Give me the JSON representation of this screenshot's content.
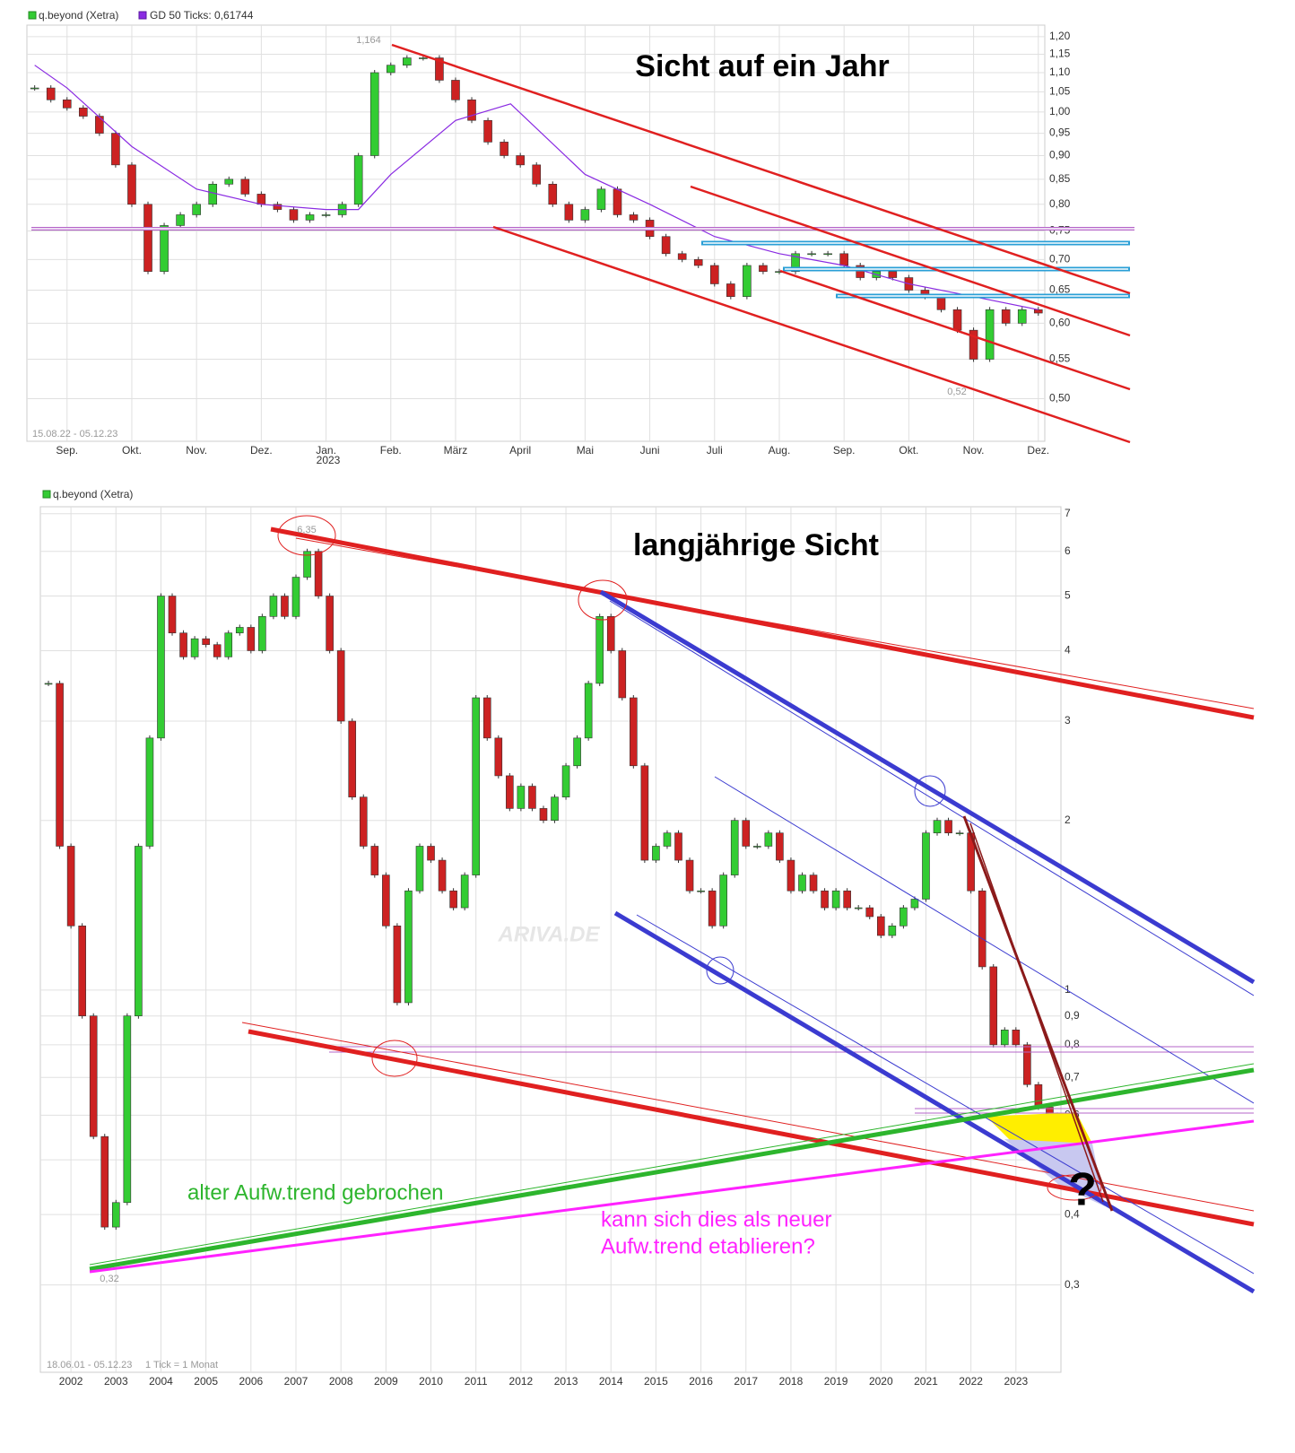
{
  "chart_data": [
    {
      "type": "candlestick",
      "title": "Sicht auf ein Jahr",
      "log_scale": true,
      "grid": true,
      "date_range": "15.08.22 - 05.12.23",
      "year_label": "2023",
      "annotations": [
        "1,164",
        "0,52"
      ],
      "xlim": [
        -0.62,
        15.1
      ],
      "ylim": [
        0.451,
        1.234
      ],
      "xticks": [
        {
          "value": 0,
          "label": "Sep."
        },
        {
          "value": 1,
          "label": "Okt."
        },
        {
          "value": 2,
          "label": "Nov."
        },
        {
          "value": 3,
          "label": "Dez."
        },
        {
          "value": 4,
          "label": "Jan."
        },
        {
          "value": 5,
          "label": "Feb."
        },
        {
          "value": 6,
          "label": "März"
        },
        {
          "value": 7,
          "label": "April"
        },
        {
          "value": 8,
          "label": "Mai"
        },
        {
          "value": 9,
          "label": "Juni"
        },
        {
          "value": 10,
          "label": "Juli"
        },
        {
          "value": 11,
          "label": "Aug."
        },
        {
          "value": 12,
          "label": "Sep."
        },
        {
          "value": 13,
          "label": "Okt."
        },
        {
          "value": 14,
          "label": "Nov."
        },
        {
          "value": 15,
          "label": "Dez."
        }
      ],
      "yticks": [
        {
          "value": 1.2,
          "label": "1,20"
        },
        {
          "value": 1.15,
          "label": "1,15"
        },
        {
          "value": 1.1,
          "label": "1,10"
        },
        {
          "value": 1.05,
          "label": "1,05"
        },
        {
          "value": 1.0,
          "label": "1,00"
        },
        {
          "value": 0.95,
          "label": "0,95"
        },
        {
          "value": 0.9,
          "label": "0,90"
        },
        {
          "value": 0.85,
          "label": "0,85"
        },
        {
          "value": 0.8,
          "label": "0,80"
        },
        {
          "value": 0.75,
          "label": "0,75"
        },
        {
          "value": 0.7,
          "label": "0,70"
        },
        {
          "value": 0.65,
          "label": "0,65"
        },
        {
          "value": 0.6,
          "label": "0,60"
        },
        {
          "value": 0.55,
          "label": "0,55"
        },
        {
          "value": 0.5,
          "label": "0,50"
        }
      ],
      "series": [
        {
          "name": "q.beyond (Xetra)",
          "type": "candlestick",
          "color": "#33cc33",
          "up_color": "#33cc33",
          "down_color": "#cc2222",
          "x": [
            -0.5,
            -0.25,
            0,
            0.25,
            0.5,
            0.75,
            1,
            1.25,
            1.5,
            1.75,
            2,
            2.25,
            2.5,
            2.75,
            3,
            3.25,
            3.5,
            3.75,
            4,
            4.25,
            4.5,
            4.75,
            5,
            5.25,
            5.5,
            5.75,
            6,
            6.25,
            6.5,
            6.75,
            7,
            7.25,
            7.5,
            7.75,
            8,
            8.25,
            8.5,
            8.75,
            9,
            9.25,
            9.5,
            9.75,
            10,
            10.25,
            10.5,
            10.75,
            11,
            11.25,
            11.5,
            11.75,
            12,
            12.25,
            12.5,
            12.75,
            13,
            13.25,
            13.5,
            13.75,
            14,
            14.25,
            14.5,
            14.75,
            15
          ],
          "values": [
            1.06,
            1.03,
            1.01,
            0.99,
            0.95,
            0.88,
            0.8,
            0.68,
            0.76,
            0.78,
            0.8,
            0.84,
            0.85,
            0.82,
            0.8,
            0.79,
            0.77,
            0.78,
            0.78,
            0.8,
            0.9,
            1.1,
            1.12,
            1.14,
            1.14,
            1.08,
            1.03,
            0.98,
            0.93,
            0.9,
            0.88,
            0.84,
            0.8,
            0.77,
            0.79,
            0.83,
            0.78,
            0.77,
            0.74,
            0.71,
            0.7,
            0.69,
            0.66,
            0.64,
            0.69,
            0.68,
            0.68,
            0.71,
            0.71,
            0.71,
            0.69,
            0.67,
            0.68,
            0.67,
            0.65,
            0.64,
            0.62,
            0.59,
            0.55,
            0.62,
            0.6,
            0.62,
            0.615
          ]
        },
        {
          "name": "GD 50 Ticks: 0,61744",
          "type": "line",
          "color": "#8a2be2",
          "x": [
            -0.5,
            0,
            1,
            2,
            3,
            4,
            4.5,
            5,
            6,
            6.85,
            8,
            9,
            10,
            11,
            12,
            13,
            14,
            15
          ],
          "values": [
            1.12,
            1.06,
            0.92,
            0.83,
            0.8,
            0.79,
            0.79,
            0.86,
            0.98,
            1.02,
            0.86,
            0.8,
            0.74,
            0.71,
            0.69,
            0.66,
            0.64,
            0.62
          ]
        }
      ]
    },
    {
      "type": "candlestick",
      "title": "langjährige Sicht",
      "log_scale": true,
      "grid": true,
      "date_range": "18.06.01 - 05.12.23",
      "tick_note": "1 Tick = 1 Monat",
      "watermark": "ARIVA.DE",
      "annotations": [
        "6,35",
        "0,32",
        "alter Aufw.trend gebrochen",
        "kann sich dies als neuer",
        "Aufw.trend etablieren?",
        "?"
      ],
      "xlim": [
        2001.32,
        2024.0
      ],
      "ylim": [
        0.21,
        7.2
      ],
      "xticks": [
        2002,
        2003,
        2004,
        2005,
        2006,
        2007,
        2008,
        2009,
        2010,
        2011,
        2012,
        2013,
        2014,
        2015,
        2016,
        2017,
        2018,
        2019,
        2020,
        2021,
        2022,
        2023
      ],
      "yticks": [
        7,
        6,
        5,
        4,
        3,
        2,
        1,
        {
          "value": 0.9,
          "label": "0,9"
        },
        {
          "value": 0.8,
          "label": "0,8"
        },
        {
          "value": 0.7,
          "label": "0,7"
        },
        {
          "value": 0.6,
          "label": "0,6"
        },
        {
          "value": 0.5,
          "label": "0,5"
        },
        {
          "value": 0.4,
          "label": "0,4"
        },
        {
          "value": 0.3,
          "label": "0,3"
        }
      ],
      "series": [
        {
          "name": "q.beyond (Xetra)",
          "type": "candlestick",
          "color": "#33cc33",
          "up_color": "#33cc33",
          "down_color": "#cc2222",
          "x": [
            2001.5,
            2001.75,
            2002,
            2002.25,
            2002.5,
            2002.75,
            2003,
            2003.25,
            2003.5,
            2003.75,
            2004,
            2004.25,
            2004.5,
            2004.75,
            2005,
            2005.25,
            2005.5,
            2005.75,
            2006,
            2006.25,
            2006.5,
            2006.75,
            2007,
            2007.25,
            2007.5,
            2007.75,
            2008,
            2008.25,
            2008.5,
            2008.75,
            2009,
            2009.25,
            2009.5,
            2009.75,
            2010,
            2010.25,
            2010.5,
            2010.75,
            2011,
            2011.25,
            2011.5,
            2011.75,
            2012,
            2012.25,
            2012.5,
            2012.75,
            2013,
            2013.25,
            2013.5,
            2013.75,
            2014,
            2014.25,
            2014.5,
            2014.75,
            2015,
            2015.25,
            2015.5,
            2015.75,
            2016,
            2016.25,
            2016.5,
            2016.75,
            2017,
            2017.25,
            2017.5,
            2017.75,
            2018,
            2018.25,
            2018.5,
            2018.75,
            2019,
            2019.25,
            2019.5,
            2019.75,
            2020,
            2020.25,
            2020.5,
            2020.75,
            2021,
            2021.25,
            2021.5,
            2021.75,
            2022,
            2022.25,
            2022.5,
            2022.75,
            2023,
            2023.25,
            2023.5,
            2023.75,
            2023.92
          ],
          "values": [
            3.5,
            1.8,
            1.3,
            0.9,
            0.55,
            0.38,
            0.42,
            0.9,
            1.8,
            2.8,
            5.0,
            4.3,
            3.9,
            4.2,
            4.1,
            3.9,
            4.3,
            4.4,
            4.0,
            4.6,
            5.0,
            4.6,
            5.4,
            6.0,
            5.0,
            4.0,
            3.0,
            2.2,
            1.8,
            1.6,
            1.3,
            0.95,
            1.5,
            1.8,
            1.7,
            1.5,
            1.4,
            1.6,
            3.3,
            2.8,
            2.4,
            2.1,
            2.3,
            2.1,
            2.0,
            2.2,
            2.5,
            2.8,
            3.5,
            4.6,
            4.0,
            3.3,
            2.5,
            1.7,
            1.8,
            1.9,
            1.7,
            1.5,
            1.5,
            1.3,
            1.6,
            2.0,
            1.8,
            1.8,
            1.9,
            1.7,
            1.5,
            1.6,
            1.5,
            1.4,
            1.5,
            1.4,
            1.4,
            1.35,
            1.25,
            1.3,
            1.4,
            1.45,
            1.9,
            2.0,
            1.9,
            1.9,
            1.5,
            1.1,
            0.8,
            0.85,
            0.8,
            0.68,
            0.62,
            0.55,
            0.6
          ]
        }
      ]
    }
  ]
}
